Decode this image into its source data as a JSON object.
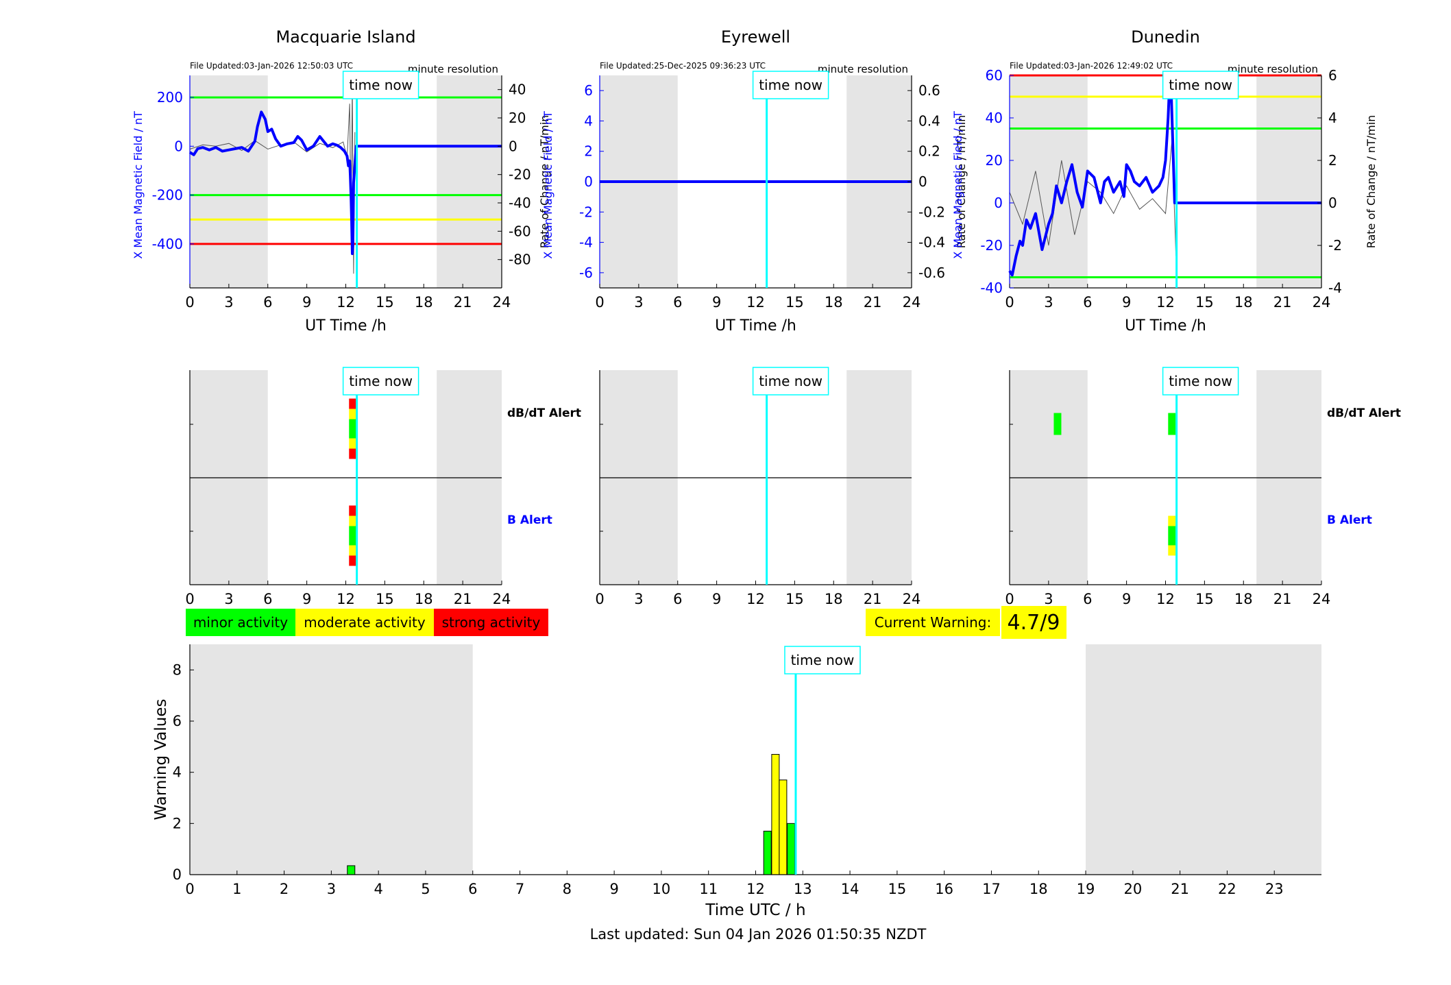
{
  "figure": {
    "footer": "Last updated: Sun 04 Jan 2026 01:50:35 NZDT",
    "time_now_label": "time now",
    "current_warning_label": "Current Warning:",
    "current_warning_value": "4.7/9",
    "minute_resolution": "minute resolution",
    "legend": [
      {
        "label": "minor activity",
        "color": "#00ff00"
      },
      {
        "label": "moderate activity",
        "color": "#ffff00"
      },
      {
        "label": "strong activity",
        "color": "#ff0000"
      }
    ],
    "alert_labels": {
      "dbdt": "dB/dT Alert",
      "b": "B Alert"
    },
    "colors": {
      "field": "#0000ff",
      "rate": "#000000",
      "now": "#00ffff",
      "night": "#e5e5e5",
      "green": "#00ff00",
      "yellow": "#ffff00",
      "red": "#ff0000"
    }
  },
  "chart_data": [
    {
      "type": "line",
      "title": "Macquarie Island",
      "file_updated": "File Updated:03-Jan-2026 12:50:03 UTC",
      "xlabel": "UT Time /h",
      "ylabel": "X Mean Magnetic Field / nT",
      "ylabel_right": "Rate of Change / nT/min",
      "xlim": [
        0,
        24
      ],
      "xticks": [
        0,
        3,
        6,
        9,
        12,
        15,
        18,
        21,
        24
      ],
      "ylim": [
        -580,
        290
      ],
      "yticks": [
        -400,
        -200,
        0,
        200
      ],
      "ylim_right": [
        -100,
        50
      ],
      "yticks_right": [
        -80,
        -60,
        -40,
        -20,
        0,
        20,
        40
      ],
      "time_now": 12.85,
      "night_shading": [
        [
          0,
          6
        ],
        [
          19,
          24
        ]
      ],
      "thresholds": [
        {
          "value": 200,
          "color": "green"
        },
        {
          "value": -200,
          "color": "green"
        },
        {
          "value": -300,
          "color": "yellow"
        },
        {
          "value": -400,
          "color": "red"
        }
      ],
      "series": [
        {
          "name": "X Mean Magnetic Field",
          "x": [
            0,
            0.3,
            0.6,
            1,
            1.5,
            2,
            2.5,
            3,
            3.5,
            4,
            4.5,
            5,
            5.2,
            5.5,
            5.8,
            6,
            6.3,
            6.6,
            7,
            7.5,
            8,
            8.3,
            8.6,
            9,
            9.5,
            10,
            10.3,
            10.6,
            11,
            11.3,
            11.6,
            11.9,
            12.1,
            12.2,
            12.3,
            12.35,
            12.4,
            12.45,
            12.5,
            12.55,
            12.6,
            12.8,
            24
          ],
          "y": [
            -25,
            -35,
            -10,
            -5,
            -15,
            -5,
            -20,
            -15,
            -10,
            -5,
            -20,
            20,
            80,
            140,
            110,
            60,
            70,
            30,
            0,
            10,
            15,
            40,
            25,
            -15,
            0,
            40,
            20,
            0,
            10,
            5,
            -5,
            -20,
            -40,
            -80,
            -60,
            -120,
            -200,
            -300,
            -440,
            -400,
            -150,
            0,
            0
          ]
        },
        {
          "name": "Rate of Change",
          "x": [
            0,
            1,
            2,
            3,
            4,
            5,
            6,
            7,
            8,
            9,
            10,
            11,
            11.8,
            12.1,
            12.3,
            12.4,
            12.5,
            12.6,
            12.7
          ],
          "y": [
            -2,
            1,
            0,
            2,
            -3,
            4,
            -2,
            1,
            3,
            -4,
            2,
            -1,
            3,
            -8,
            30,
            -60,
            45,
            -90,
            10
          ]
        }
      ]
    },
    {
      "type": "line",
      "title": "Eyrewell",
      "file_updated": "File Updated:25-Dec-2025 09:36:23 UTC",
      "xlabel": "UT Time /h",
      "ylabel": "X Mean Magnetic Field / nT",
      "ylabel_right": "Rate of Change / nT/min",
      "xlim": [
        0,
        24
      ],
      "xticks": [
        0,
        3,
        6,
        9,
        12,
        15,
        18,
        21,
        24
      ],
      "ylim": [
        -7,
        7
      ],
      "yticks": [
        -6,
        -4,
        -2,
        0,
        2,
        4,
        6
      ],
      "ylim_right": [
        -0.7,
        0.7
      ],
      "yticks_right": [
        -0.6,
        -0.4,
        -0.2,
        0,
        0.2,
        0.4,
        0.6
      ],
      "time_now": 12.85,
      "night_shading": [
        [
          0,
          6
        ],
        [
          19,
          24
        ]
      ],
      "thresholds": [],
      "series": [
        {
          "name": "X Mean Magnetic Field",
          "x": [
            0,
            24
          ],
          "y": [
            0,
            0
          ]
        }
      ]
    },
    {
      "type": "line",
      "title": "Dunedin",
      "file_updated": "File Updated:03-Jan-2026 12:49:02 UTC",
      "xlabel": "UT Time /h",
      "ylabel": "X Mean Magnetic Field / nT",
      "ylabel_right": "Rate of Change / nT/min",
      "xlim": [
        0,
        24
      ],
      "xticks": [
        0,
        3,
        6,
        9,
        12,
        15,
        18,
        21,
        24
      ],
      "ylim": [
        -40,
        60
      ],
      "yticks": [
        -40,
        -20,
        0,
        20,
        40,
        60
      ],
      "ylim_right": [
        -4,
        6
      ],
      "yticks_right": [
        -4,
        -2,
        0,
        2,
        4,
        6
      ],
      "time_now": 12.85,
      "night_shading": [
        [
          0,
          6
        ],
        [
          19,
          24
        ]
      ],
      "thresholds": [
        {
          "value": 60,
          "color": "red"
        },
        {
          "value": 50,
          "color": "yellow"
        },
        {
          "value": 35,
          "color": "green"
        },
        {
          "value": -35,
          "color": "green"
        }
      ],
      "series": [
        {
          "name": "X Mean Magnetic Field",
          "x": [
            0,
            0.2,
            0.5,
            0.8,
            1,
            1.3,
            1.6,
            2,
            2.5,
            3,
            3.3,
            3.6,
            4,
            4.4,
            4.8,
            5.2,
            5.6,
            6,
            6.5,
            7,
            7.3,
            7.6,
            8,
            8.5,
            8.8,
            9,
            9.3,
            9.6,
            10,
            10.5,
            11,
            11.5,
            11.8,
            12,
            12.2,
            12.3,
            12.45,
            12.6,
            12.7,
            12.8,
            24
          ],
          "y": [
            -32,
            -34,
            -25,
            -18,
            -20,
            -8,
            -12,
            -5,
            -22,
            -10,
            -5,
            8,
            0,
            10,
            18,
            5,
            -2,
            15,
            12,
            0,
            10,
            12,
            5,
            10,
            3,
            18,
            15,
            10,
            8,
            12,
            5,
            8,
            12,
            20,
            40,
            55,
            50,
            20,
            0,
            0,
            0
          ]
        },
        {
          "name": "Rate of Change",
          "x": [
            0,
            1,
            2,
            3,
            4,
            5,
            6,
            7,
            8,
            9,
            10,
            11,
            12,
            12.5,
            12.8
          ],
          "y": [
            0.5,
            -1,
            1.5,
            -2,
            2,
            -1.5,
            1,
            0.5,
            -0.5,
            0.8,
            -0.3,
            0.2,
            -0.5,
            3,
            -2.5
          ]
        }
      ]
    },
    {
      "type": "bar",
      "title": "",
      "xlabel": "",
      "ylabel": "",
      "xlim": [
        0,
        24
      ],
      "xticks": [
        0,
        3,
        6,
        9,
        12,
        15,
        18,
        21,
        24
      ],
      "night_shading": [
        [
          0,
          6
        ],
        [
          19,
          24
        ]
      ],
      "time_now": 12.85,
      "rows": [
        {
          "label": "dB/dT Alert",
          "bars": [
            {
              "x": 12.25,
              "levels": [
                "red",
                "yellow",
                "green",
                "yellow",
                "red"
              ]
            }
          ]
        },
        {
          "label": "B Alert",
          "bars": [
            {
              "x": 12.25,
              "levels": [
                "red",
                "yellow",
                "green",
                "yellow",
                "red"
              ]
            }
          ]
        }
      ]
    },
    {
      "type": "bar",
      "title": "",
      "xlabel": "",
      "ylabel": "",
      "xlim": [
        0,
        24
      ],
      "xticks": [
        0,
        3,
        6,
        9,
        12,
        15,
        18,
        21,
        24
      ],
      "night_shading": [
        [
          0,
          6
        ],
        [
          19,
          24
        ]
      ],
      "time_now": 12.85,
      "rows": [
        {
          "label": "",
          "bars": []
        },
        {
          "label": "",
          "bars": []
        }
      ]
    },
    {
      "type": "bar",
      "title": "",
      "xlabel": "",
      "ylabel": "",
      "xlim": [
        0,
        24
      ],
      "xticks": [
        0,
        3,
        6,
        9,
        12,
        15,
        18,
        21,
        24
      ],
      "night_shading": [
        [
          0,
          6
        ],
        [
          19,
          24
        ]
      ],
      "time_now": 12.85,
      "rows": [
        {
          "label": "dB/dT Alert",
          "bars": [
            {
              "x": 3.4,
              "levels": [
                "green"
              ]
            },
            {
              "x": 12.2,
              "levels": [
                "green"
              ]
            }
          ]
        },
        {
          "label": "B Alert",
          "bars": [
            {
              "x": 12.2,
              "levels": [
                "yellow",
                "green",
                "yellow"
              ]
            }
          ]
        }
      ]
    },
    {
      "type": "bar",
      "title": "",
      "xlabel": "Time UTC / h",
      "ylabel": "Warning Values",
      "xlim": [
        0,
        24
      ],
      "xticks": [
        0,
        1,
        2,
        3,
        4,
        5,
        6,
        7,
        8,
        9,
        10,
        11,
        12,
        13,
        14,
        15,
        16,
        17,
        18,
        19,
        20,
        21,
        22,
        23
      ],
      "ylim": [
        0,
        9
      ],
      "yticks": [
        0,
        2,
        4,
        6,
        8
      ],
      "night_shading": [
        [
          0,
          6
        ],
        [
          19,
          24
        ]
      ],
      "time_now": 12.85,
      "bars": [
        {
          "x": 3.42,
          "value": 0.35,
          "color": "green"
        },
        {
          "x": 12.25,
          "value": 1.7,
          "color": "green"
        },
        {
          "x": 12.42,
          "value": 4.7,
          "color": "yellow"
        },
        {
          "x": 12.58,
          "value": 3.7,
          "color": "yellow"
        },
        {
          "x": 12.75,
          "value": 2.0,
          "color": "green"
        }
      ]
    }
  ]
}
